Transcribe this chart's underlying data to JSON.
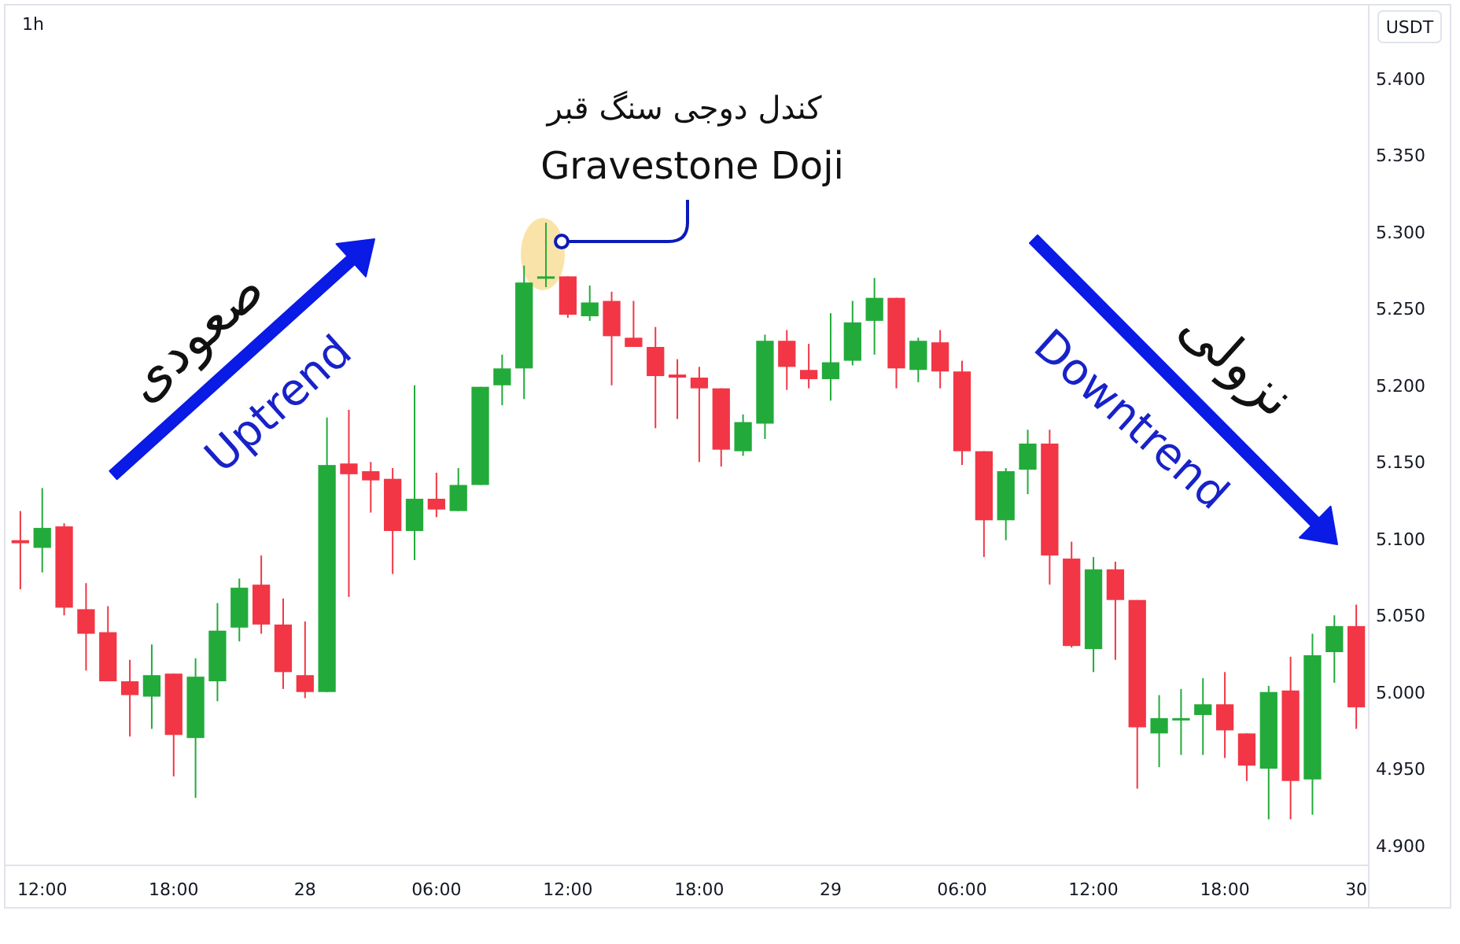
{
  "chart_data": {
    "type": "candlestick",
    "title": "1h",
    "ylabel": "USDT",
    "categories": [
      null,
      "12:00",
      null,
      null,
      null,
      null,
      null,
      "18:00",
      null,
      null,
      null,
      null,
      null,
      "28",
      null,
      null,
      null,
      null,
      null,
      "06:00",
      null,
      null,
      null,
      null,
      null,
      "12:00",
      null,
      null,
      null,
      null,
      null,
      "18:00",
      null,
      null,
      null,
      null,
      null,
      "29",
      null,
      null,
      null,
      null,
      null,
      "06:00",
      null,
      null,
      null,
      null,
      null,
      "12:00",
      null,
      null,
      null,
      null,
      null,
      "18:00",
      null,
      null,
      null,
      null,
      null,
      "30"
    ],
    "ohlc": [
      [
        5.099,
        5.118,
        5.067,
        5.097
      ],
      [
        5.094,
        5.133,
        5.078,
        5.107
      ],
      [
        5.108,
        5.11,
        5.05,
        5.055
      ],
      [
        5.054,
        5.071,
        5.014,
        5.038
      ],
      [
        5.039,
        5.056,
        5.007,
        5.007
      ],
      [
        5.007,
        5.021,
        4.971,
        4.998
      ],
      [
        4.997,
        5.031,
        4.976,
        5.011
      ],
      [
        5.012,
        5.012,
        4.945,
        4.972
      ],
      [
        4.97,
        5.022,
        4.931,
        5.01
      ],
      [
        5.007,
        5.058,
        4.994,
        5.04
      ],
      [
        5.042,
        5.074,
        5.033,
        5.068
      ],
      [
        5.07,
        5.089,
        5.038,
        5.044
      ],
      [
        5.044,
        5.061,
        5.002,
        5.013
      ],
      [
        5.011,
        5.046,
        4.996,
        5.0
      ],
      [
        5.0,
        5.179,
        5.0,
        5.148
      ],
      [
        5.149,
        5.184,
        5.062,
        5.142
      ],
      [
        5.144,
        5.15,
        5.117,
        5.138
      ],
      [
        5.139,
        5.146,
        5.077,
        5.105
      ],
      [
        5.105,
        5.2,
        5.086,
        5.126
      ],
      [
        5.126,
        5.143,
        5.114,
        5.119
      ],
      [
        5.118,
        5.146,
        5.118,
        5.135
      ],
      [
        5.135,
        5.199,
        5.135,
        5.199
      ],
      [
        5.2,
        5.22,
        5.187,
        5.211
      ],
      [
        5.211,
        5.278,
        5.191,
        5.267
      ],
      [
        5.27,
        5.306,
        5.264,
        5.271
      ],
      [
        5.271,
        5.271,
        5.244,
        5.246
      ],
      [
        5.245,
        5.265,
        5.242,
        5.254
      ],
      [
        5.255,
        5.261,
        5.2,
        5.232
      ],
      [
        5.231,
        5.255,
        5.225,
        5.225
      ],
      [
        5.225,
        5.238,
        5.172,
        5.206
      ],
      [
        5.207,
        5.217,
        5.178,
        5.205
      ],
      [
        5.205,
        5.212,
        5.15,
        5.198
      ],
      [
        5.198,
        5.198,
        5.147,
        5.158
      ],
      [
        5.157,
        5.181,
        5.154,
        5.176
      ],
      [
        5.175,
        5.233,
        5.165,
        5.229
      ],
      [
        5.229,
        5.236,
        5.197,
        5.212
      ],
      [
        5.21,
        5.227,
        5.198,
        5.204
      ],
      [
        5.204,
        5.247,
        5.19,
        5.215
      ],
      [
        5.216,
        5.255,
        5.213,
        5.241
      ],
      [
        5.242,
        5.27,
        5.22,
        5.257
      ],
      [
        5.257,
        5.257,
        5.198,
        5.211
      ],
      [
        5.21,
        5.231,
        5.202,
        5.229
      ],
      [
        5.228,
        5.236,
        5.198,
        5.209
      ],
      [
        5.209,
        5.216,
        5.148,
        5.157
      ],
      [
        5.157,
        5.157,
        5.088,
        5.112
      ],
      [
        5.112,
        5.146,
        5.099,
        5.144
      ],
      [
        5.145,
        5.171,
        5.129,
        5.162
      ],
      [
        5.162,
        5.171,
        5.07,
        5.089
      ],
      [
        5.087,
        5.098,
        5.029,
        5.03
      ],
      [
        5.028,
        5.088,
        5.013,
        5.08
      ],
      [
        5.08,
        5.085,
        5.021,
        5.06
      ],
      [
        5.06,
        5.06,
        4.937,
        4.977
      ],
      [
        4.973,
        4.998,
        4.951,
        4.983
      ],
      [
        4.982,
        5.002,
        4.959,
        4.983
      ],
      [
        4.985,
        5.009,
        4.959,
        4.992
      ],
      [
        4.992,
        5.013,
        4.957,
        4.975
      ],
      [
        4.973,
        4.973,
        4.942,
        4.952
      ],
      [
        4.95,
        5.004,
        4.917,
        5.0
      ],
      [
        5.001,
        5.023,
        4.917,
        4.942
      ],
      [
        4.943,
        5.038,
        4.92,
        5.024
      ],
      [
        5.026,
        5.05,
        5.006,
        5.043
      ],
      [
        5.043,
        5.057,
        4.976,
        4.99
      ]
    ],
    "colors": [
      "#f23645",
      "#22ab3a",
      "#f23645",
      "#f23645",
      "#f23645",
      "#f23645",
      "#22ab3a",
      "#f23645",
      "#22ab3a",
      "#22ab3a",
      "#22ab3a",
      "#f23645",
      "#f23645",
      "#f23645",
      "#22ab3a",
      "#f23645",
      "#f23645",
      "#f23645",
      "#22ab3a",
      "#f23645",
      "#22ab3a",
      "#22ab3a",
      "#22ab3a",
      "#22ab3a",
      "#22ab3a",
      "#f23645",
      "#22ab3a",
      "#f23645",
      "#f23645",
      "#f23645",
      "#f23645",
      "#f23645",
      "#f23645",
      "#22ab3a",
      "#22ab3a",
      "#f23645",
      "#f23645",
      "#22ab3a",
      "#22ab3a",
      "#22ab3a",
      "#f23645",
      "#22ab3a",
      "#f23645",
      "#f23645",
      "#f23645",
      "#22ab3a",
      "#22ab3a",
      "#f23645",
      "#f23645",
      "#22ab3a",
      "#f23645",
      "#f23645",
      "#22ab3a",
      "#22ab3a",
      "#22ab3a",
      "#f23645",
      "#f23645",
      "#22ab3a",
      "#f23645",
      "#22ab3a",
      "#22ab3a",
      "#f23645"
    ],
    "ylim": [
      4.887,
      5.443
    ],
    "yticks": [
      {
        "value": 4.9,
        "label": "4.900"
      },
      {
        "value": 4.95,
        "label": "4.950"
      },
      {
        "value": 5.0,
        "label": "5.000"
      },
      {
        "value": 5.05,
        "label": "5.050"
      },
      {
        "value": 5.1,
        "label": "5.100"
      },
      {
        "value": 5.15,
        "label": "5.150"
      },
      {
        "value": 5.2,
        "label": "5.200"
      },
      {
        "value": 5.25,
        "label": "5.250"
      },
      {
        "value": 5.3,
        "label": "5.300"
      },
      {
        "value": 5.35,
        "label": "5.350"
      },
      {
        "value": 5.4,
        "label": "5.400"
      }
    ],
    "annotations": [
      "کندل دوجی سنگ قبر",
      "Gravestone Doji",
      "صعودی",
      "Uptrend",
      "Downtrend",
      "نزولی"
    ]
  }
}
